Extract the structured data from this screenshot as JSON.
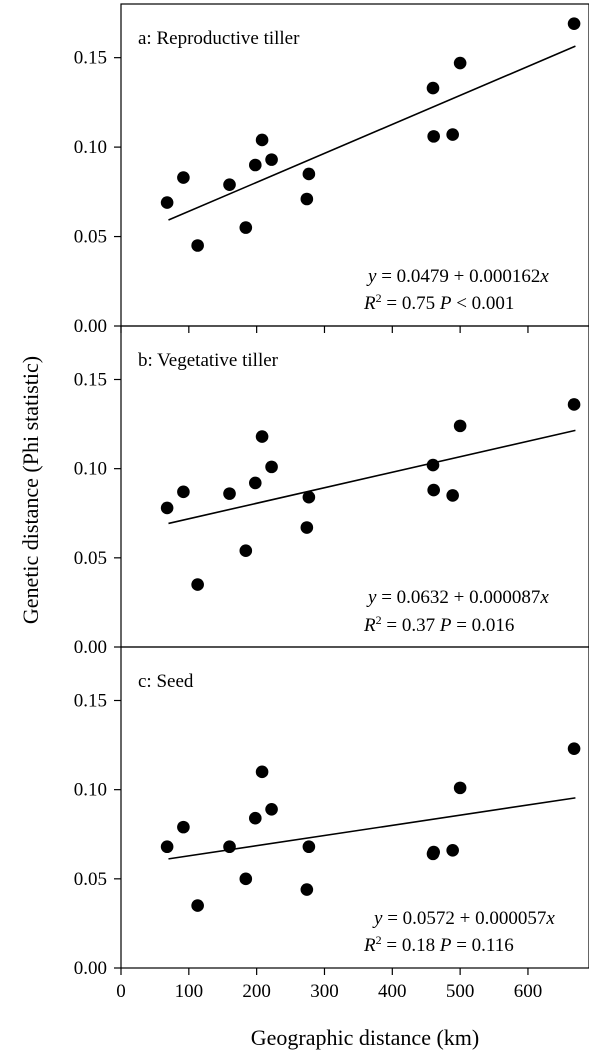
{
  "figure": {
    "ylabel": "Genetic distance (Phi statistic)",
    "xlabel": "Geographic distance (km)"
  },
  "chart_data": [
    {
      "type": "scatter",
      "panel": "a",
      "title": "a: Reproductive tiller",
      "xlabel": "Geographic distance (km)",
      "ylabel": "Genetic distance (Phi statistic)",
      "xlim": [
        0,
        690
      ],
      "ylim": [
        0,
        0.18
      ],
      "xticks": [
        0,
        100,
        200,
        300,
        400,
        500,
        600
      ],
      "yticks": [
        0.0,
        0.05,
        0.1,
        0.15
      ],
      "ytick_labels": [
        "0.00",
        "0.05",
        "0.10",
        "0.15"
      ],
      "x": [
        68,
        92,
        113,
        160,
        184,
        198,
        208,
        222,
        274,
        277,
        460,
        461,
        489,
        500,
        668
      ],
      "y": [
        0.069,
        0.083,
        0.045,
        0.079,
        0.055,
        0.09,
        0.104,
        0.093,
        0.071,
        0.085,
        0.133,
        0.106,
        0.107,
        0.147,
        0.169
      ],
      "fit": {
        "intercept": 0.0479,
        "slope": 0.000162,
        "x_range": [
          70,
          670
        ]
      },
      "equation": {
        "y_sym": "y",
        "eq": " = 0.0479 + 0.000162",
        "x_sym": "x",
        "r_sym": "R",
        "sup": "2",
        "stats_pre": " = 0.75 ",
        "p_sym": "P",
        "stats_post": " < 0.001"
      }
    },
    {
      "type": "scatter",
      "panel": "b",
      "title": "b: Vegetative tiller",
      "xlim": [
        0,
        690
      ],
      "ylim": [
        0,
        0.18
      ],
      "yticks": [
        0.0,
        0.05,
        0.1,
        0.15
      ],
      "ytick_labels": [
        "0.00",
        "0.05",
        "0.10",
        "0.15"
      ],
      "x": [
        68,
        92,
        113,
        160,
        184,
        198,
        208,
        222,
        274,
        277,
        460,
        461,
        489,
        500,
        668
      ],
      "y": [
        0.078,
        0.087,
        0.035,
        0.086,
        0.054,
        0.092,
        0.118,
        0.101,
        0.067,
        0.084,
        0.102,
        0.088,
        0.085,
        0.124,
        0.136
      ],
      "fit": {
        "intercept": 0.0632,
        "slope": 8.7e-05,
        "x_range": [
          70,
          670
        ]
      },
      "equation": {
        "y_sym": "y",
        "eq": " =  0.0632 + 0.000087",
        "x_sym": "x",
        "r_sym": "R",
        "sup": "2",
        "stats_pre": " = 0.37 ",
        "p_sym": "P",
        "stats_post": " = 0.016"
      }
    },
    {
      "type": "scatter",
      "panel": "c",
      "title": "c: Seed",
      "xlim": [
        0,
        690
      ],
      "ylim": [
        0,
        0.18
      ],
      "yticks": [
        0.0,
        0.05,
        0.1,
        0.15
      ],
      "ytick_labels": [
        "0.00",
        "0.05",
        "0.10",
        "0.15"
      ],
      "xticks": [
        0,
        100,
        200,
        300,
        400,
        500,
        600
      ],
      "xtick_labels": [
        "0",
        "100",
        "200",
        "300",
        "400",
        "500",
        "600"
      ],
      "x": [
        68,
        92,
        113,
        160,
        184,
        198,
        208,
        222,
        274,
        277,
        460,
        461,
        489,
        500,
        668
      ],
      "y": [
        0.068,
        0.079,
        0.035,
        0.068,
        0.05,
        0.084,
        0.11,
        0.089,
        0.044,
        0.068,
        0.064,
        0.065,
        0.066,
        0.101,
        0.123
      ],
      "fit": {
        "intercept": 0.0572,
        "slope": 5.7e-05,
        "x_range": [
          70,
          670
        ]
      },
      "equation": {
        "y_sym": "y",
        "eq": " = 0.0572 + 0.000057",
        "x_sym": "x",
        "r_sym": "R",
        "sup": "2",
        "stats_pre": " = 0.18 ",
        "p_sym": "P",
        "stats_post": " = 0.116"
      }
    }
  ]
}
